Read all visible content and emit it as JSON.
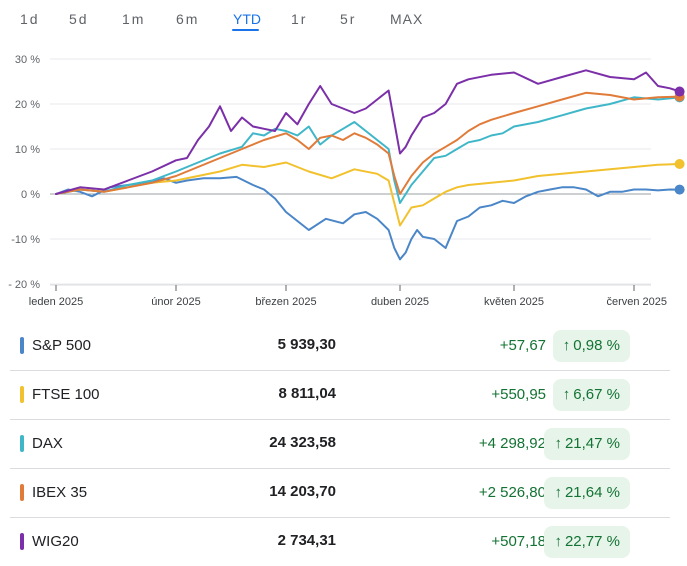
{
  "range_tabs": [
    {
      "label": "1d",
      "active": false
    },
    {
      "label": "5d",
      "active": false
    },
    {
      "label": "1m",
      "active": false
    },
    {
      "label": "6m",
      "active": false
    },
    {
      "label": "YTD",
      "active": true
    },
    {
      "label": "1r",
      "active": false
    },
    {
      "label": "5r",
      "active": false
    },
    {
      "label": "MAX",
      "active": false
    }
  ],
  "chart_data": {
    "type": "line",
    "x_tick_labels": [
      "leden 2025",
      "únor 2025",
      "březen 2025",
      "duben 2025",
      "květen 2025",
      "červen 2025"
    ],
    "y_tick_labels": [
      "30 %",
      "20 %",
      "10 %",
      "0 %",
      "-10 %",
      "- 20 %"
    ],
    "ylim": [
      -20,
      30
    ],
    "x_range_months": [
      0,
      5.4
    ],
    "grid": true,
    "zero_line": true,
    "series": [
      {
        "name": "S&P 500",
        "color": "#4a86c8",
        "x": [
          0,
          0.1,
          0.2,
          0.3,
          0.45,
          0.6,
          0.75,
          0.9,
          1.0,
          1.1,
          1.25,
          1.4,
          1.55,
          1.7,
          1.8,
          1.9,
          2.0,
          2.1,
          2.2,
          2.35,
          2.5,
          2.6,
          2.7,
          2.8,
          2.9,
          2.95,
          3.0,
          3.05,
          3.1,
          3.15,
          3.2,
          3.3,
          3.4,
          3.5,
          3.6,
          3.7,
          3.8,
          3.9,
          4.0,
          4.1,
          4.2,
          4.3,
          4.4,
          4.5,
          4.6,
          4.7,
          4.8,
          4.9,
          5.0,
          5.1,
          5.2,
          5.3,
          5.38
        ],
        "values": [
          0,
          1.0,
          0.5,
          -0.5,
          1.5,
          2.0,
          2.5,
          3.5,
          2.5,
          3.0,
          3.5,
          3.5,
          3.8,
          2.0,
          1.0,
          -1.0,
          -4.0,
          -6.0,
          -8.0,
          -5.5,
          -6.5,
          -4.5,
          -4.0,
          -5.5,
          -8.0,
          -12.0,
          -14.5,
          -13.0,
          -10.0,
          -8.0,
          -9.5,
          -10.0,
          -12.0,
          -6.0,
          -5.0,
          -3.0,
          -2.5,
          -1.5,
          -2.0,
          -0.5,
          0.5,
          1.0,
          1.5,
          1.5,
          1.0,
          -0.5,
          0.5,
          0.5,
          1.0,
          1.0,
          0.8,
          1.0,
          0.98
        ]
      },
      {
        "name": "FTSE 100",
        "color": "#f2c12e",
        "x": [
          0,
          0.2,
          0.4,
          0.6,
          0.8,
          1.0,
          1.2,
          1.4,
          1.6,
          1.8,
          2.0,
          2.2,
          2.4,
          2.6,
          2.8,
          2.9,
          2.95,
          3.0,
          3.05,
          3.1,
          3.2,
          3.3,
          3.4,
          3.5,
          3.6,
          3.8,
          4.0,
          4.2,
          4.4,
          4.6,
          4.8,
          5.0,
          5.2,
          5.38
        ],
        "values": [
          0,
          1.0,
          0.5,
          1.5,
          2.5,
          3.0,
          4.0,
          5.0,
          6.5,
          6.0,
          7.0,
          5.0,
          3.5,
          5.5,
          4.5,
          3.0,
          -2.0,
          -7.0,
          -5.0,
          -3.0,
          -2.5,
          -1.0,
          0.5,
          1.5,
          2.0,
          2.5,
          3.0,
          4.0,
          4.5,
          5.0,
          5.5,
          6.0,
          6.5,
          6.67
        ]
      },
      {
        "name": "DAX",
        "color": "#3fb7c9",
        "x": [
          0,
          0.2,
          0.4,
          0.6,
          0.8,
          1.0,
          1.2,
          1.4,
          1.6,
          1.7,
          1.8,
          1.9,
          2.0,
          2.1,
          2.2,
          2.3,
          2.4,
          2.5,
          2.6,
          2.7,
          2.8,
          2.9,
          2.95,
          3.0,
          3.05,
          3.1,
          3.2,
          3.3,
          3.4,
          3.5,
          3.6,
          3.7,
          3.8,
          3.9,
          4.0,
          4.2,
          4.4,
          4.6,
          4.8,
          5.0,
          5.2,
          5.38
        ],
        "values": [
          0,
          1.0,
          0.5,
          2.0,
          3.0,
          5.0,
          7.0,
          9.0,
          10.5,
          13.5,
          13.0,
          14.5,
          14.0,
          13.0,
          15.0,
          11.0,
          13.0,
          14.5,
          16.0,
          14.0,
          12.0,
          10.0,
          3.0,
          -2.0,
          0.0,
          2.0,
          5.0,
          8.0,
          8.5,
          10.0,
          11.5,
          12.0,
          13.0,
          13.5,
          15.0,
          16.0,
          17.5,
          19.0,
          20.0,
          21.5,
          21.0,
          21.47
        ]
      },
      {
        "name": "IBEX 35",
        "color": "#e07b39",
        "x": [
          0,
          0.2,
          0.4,
          0.6,
          0.8,
          1.0,
          1.2,
          1.4,
          1.6,
          1.8,
          2.0,
          2.1,
          2.2,
          2.3,
          2.4,
          2.5,
          2.6,
          2.7,
          2.8,
          2.9,
          2.95,
          3.0,
          3.05,
          3.1,
          3.2,
          3.3,
          3.4,
          3.5,
          3.6,
          3.7,
          3.8,
          4.0,
          4.2,
          4.4,
          4.6,
          4.8,
          5.0,
          5.2,
          5.38
        ],
        "values": [
          0,
          1.0,
          0.5,
          1.5,
          2.5,
          4.0,
          6.0,
          8.0,
          10.0,
          12.0,
          13.5,
          12.0,
          10.0,
          12.5,
          13.0,
          12.0,
          13.5,
          12.5,
          11.0,
          9.0,
          4.0,
          0.0,
          2.0,
          4.0,
          7.0,
          9.0,
          10.5,
          12.0,
          14.0,
          15.5,
          16.5,
          18.0,
          19.5,
          21.0,
          22.5,
          22.0,
          21.0,
          21.5,
          21.64
        ]
      },
      {
        "name": "WIG20",
        "color": "#7b2fa8",
        "x": [
          0,
          0.2,
          0.4,
          0.6,
          0.8,
          1.0,
          1.1,
          1.2,
          1.3,
          1.4,
          1.5,
          1.6,
          1.7,
          1.8,
          1.9,
          2.0,
          2.1,
          2.2,
          2.3,
          2.4,
          2.5,
          2.6,
          2.7,
          2.8,
          2.9,
          2.95,
          3.0,
          3.05,
          3.1,
          3.2,
          3.3,
          3.4,
          3.5,
          3.6,
          3.8,
          4.0,
          4.2,
          4.4,
          4.6,
          4.8,
          5.0,
          5.1,
          5.2,
          5.3,
          5.38
        ],
        "values": [
          0,
          1.5,
          1.0,
          3.0,
          5.0,
          7.5,
          8.0,
          12.0,
          15.0,
          19.5,
          14.0,
          17.0,
          15.0,
          14.5,
          14.0,
          18.0,
          15.5,
          20.0,
          24.0,
          20.0,
          19.0,
          18.0,
          19.0,
          21.0,
          23.0,
          16.0,
          9.0,
          10.5,
          13.0,
          17.0,
          18.0,
          20.0,
          24.5,
          25.5,
          26.5,
          27.0,
          24.5,
          26.0,
          27.5,
          26.0,
          25.5,
          27.0,
          24.0,
          23.5,
          22.77
        ]
      }
    ]
  },
  "indices": [
    {
      "name": "S&P 500",
      "color": "#4a86c8",
      "price": "5 939,30",
      "change": "+57,67",
      "pct": "0,98 %",
      "arrow": "↑"
    },
    {
      "name": "FTSE 100",
      "color": "#f2c12e",
      "price": "8 811,04",
      "change": "+550,95",
      "pct": "6,67 %",
      "arrow": "↑"
    },
    {
      "name": "DAX",
      "color": "#3fb7c9",
      "price": "24 323,58",
      "change": "+4 298,92",
      "pct": "21,47 %",
      "arrow": "↑"
    },
    {
      "name": "IBEX 35",
      "color": "#e07b39",
      "price": "14 203,70",
      "change": "+2 526,80",
      "pct": "21,64 %",
      "arrow": "↑"
    },
    {
      "name": "WIG20",
      "color": "#7b2fa8",
      "price": "2 734,31",
      "change": "+507,18",
      "pct": "22,77 %",
      "arrow": "↑"
    }
  ]
}
